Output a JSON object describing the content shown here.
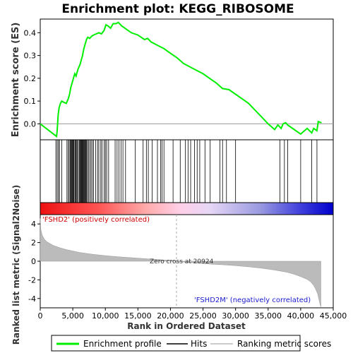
{
  "chart_data": {
    "type": "line",
    "title": "Enrichment plot: KEGG_RIBOSOME",
    "xlabel": "Rank in Ordered Dataset",
    "ylabel_es": "Enrichment score (ES)",
    "ylabel_rank": "Ranked list metric (Signal2Noise)",
    "xlim": [
      0,
      45000
    ],
    "es_ylim": [
      -0.07,
      0.46
    ],
    "rank_ylim": [
      -5,
      5
    ],
    "x_ticks": [
      0,
      5000,
      10000,
      15000,
      20000,
      25000,
      30000,
      35000,
      40000,
      45000
    ],
    "x_tick_labels": [
      "0",
      "5,000",
      "10,000",
      "15,000",
      "20,000",
      "25,000",
      "30,000",
      "35,000",
      "40,000",
      "45,000"
    ],
    "es_ticks": [
      0.0,
      0.1,
      0.2,
      0.3,
      0.4
    ],
    "es_tick_labels": [
      "0.0",
      "0.1",
      "0.2",
      "0.3",
      "0.4"
    ],
    "rank_ticks": [
      -4,
      -2,
      0,
      2,
      4
    ],
    "rank_tick_labels": [
      "-4",
      "-2",
      "0",
      "2",
      "4"
    ],
    "series": [
      {
        "name": "Enrichment profile",
        "color": "#00ee00",
        "x": [
          0,
          2500,
          2600,
          2750,
          2900,
          3100,
          3300,
          3600,
          4000,
          4300,
          4500,
          4700,
          4900,
          5100,
          5300,
          5500,
          5800,
          6100,
          6300,
          6500,
          6700,
          6900,
          7100,
          7300,
          7600,
          7900,
          8200,
          8600,
          9000,
          9400,
          9800,
          10100,
          10400,
          10800,
          11200,
          11600,
          12000,
          12500,
          13000,
          14000,
          15000,
          16000,
          16500,
          17000,
          18000,
          19000,
          20000,
          21000,
          22000,
          23000,
          24000,
          25000,
          26000,
          27000,
          28000,
          29000,
          30000,
          31000,
          32000,
          33000,
          34000,
          35000,
          36000,
          36500,
          37000,
          37300,
          37700,
          38000,
          39000,
          40000,
          41000,
          41700,
          42000,
          42500,
          42700,
          43200
        ],
        "values": [
          0.0,
          -0.055,
          -0.03,
          0.04,
          0.07,
          0.09,
          0.1,
          0.095,
          0.09,
          0.11,
          0.13,
          0.16,
          0.18,
          0.2,
          0.22,
          0.21,
          0.24,
          0.26,
          0.28,
          0.3,
          0.33,
          0.35,
          0.37,
          0.38,
          0.375,
          0.385,
          0.39,
          0.395,
          0.4,
          0.395,
          0.41,
          0.435,
          0.43,
          0.42,
          0.44,
          0.44,
          0.445,
          0.43,
          0.42,
          0.4,
          0.39,
          0.37,
          0.375,
          0.36,
          0.345,
          0.33,
          0.31,
          0.29,
          0.265,
          0.25,
          0.235,
          0.22,
          0.2,
          0.18,
          0.155,
          0.15,
          0.13,
          0.11,
          0.09,
          0.06,
          0.03,
          0.0,
          -0.025,
          -0.005,
          -0.02,
          0.0,
          0.005,
          -0.005,
          -0.025,
          -0.045,
          -0.02,
          -0.04,
          -0.02,
          -0.03,
          0.01,
          0.005
        ]
      },
      {
        "name": "Hits",
        "color": "#000000",
        "positions": [
          2400,
          2600,
          2800,
          2950,
          3300,
          4100,
          4300,
          4450,
          4600,
          4700,
          4800,
          4900,
          5000,
          5100,
          5200,
          5350,
          5450,
          5550,
          5700,
          5850,
          6000,
          6100,
          6200,
          6300,
          6400,
          6500,
          6600,
          6700,
          6800,
          6900,
          7000,
          7100,
          7250,
          7400,
          7600,
          7800,
          8000,
          8200,
          8500,
          8800,
          9000,
          9300,
          9500,
          9800,
          10000,
          10200,
          10500,
          11500,
          11800,
          12100,
          12400,
          12700,
          13100,
          14600,
          15800,
          16300,
          16600,
          17200,
          18000,
          18500,
          18700,
          19000,
          20400,
          21500,
          22300,
          22700,
          23100,
          23700,
          24100,
          24500,
          25300,
          26100,
          27600,
          28000,
          28600,
          30000,
          36800,
          37500,
          38000,
          40000,
          41700,
          42500
        ]
      },
      {
        "name": "Ranking metric scores",
        "color": "#bbbbbb",
        "x": [
          0,
          100,
          300,
          600,
          1000,
          1500,
          2000,
          3000,
          4000,
          6000,
          8000,
          10000,
          12000,
          14000,
          16000,
          18000,
          20000,
          20924,
          22000,
          24000,
          26000,
          28000,
          30000,
          32000,
          34000,
          36000,
          38000,
          39000,
          40000,
          41000,
          41500,
          42000,
          42300,
          42600,
          42800,
          43000,
          43100
        ],
        "values": [
          4.6,
          3.4,
          2.8,
          2.4,
          2.1,
          1.9,
          1.7,
          1.45,
          1.25,
          0.95,
          0.75,
          0.6,
          0.48,
          0.38,
          0.28,
          0.18,
          0.08,
          0.0,
          -0.08,
          -0.2,
          -0.3,
          -0.38,
          -0.48,
          -0.6,
          -0.75,
          -0.95,
          -1.2,
          -1.4,
          -1.65,
          -1.95,
          -2.2,
          -2.6,
          -3.0,
          -3.5,
          -4.1,
          -4.7,
          -4.9
        ]
      }
    ],
    "zero_cross_label": "Zero cross at 20924",
    "zero_cross_x": 20924,
    "pos_label": "'FSHD2' (positively correlated)",
    "neg_label": "'FSHD2M' (negatively correlated)",
    "legend": [
      "Enrichment profile",
      "Hits",
      "Ranking metric scores"
    ],
    "legend_position": "bottom",
    "grid": false,
    "colors": {
      "es_line": "#00ee00",
      "hits": "#000000",
      "metric_fill": "#bbbbbb",
      "pos_color": "#ff0000",
      "neg_color": "#0000ff"
    }
  }
}
